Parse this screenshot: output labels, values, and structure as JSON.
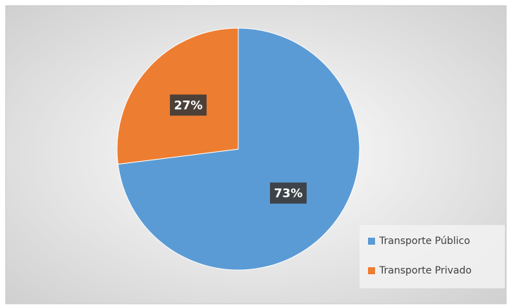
{
  "chart_data": {
    "type": "pie",
    "categories": [
      "Transporte Público",
      "Transporte Privado"
    ],
    "values": [
      73,
      27
    ],
    "value_labels": [
      "73%",
      "27%"
    ],
    "colors": [
      "#5b9bd5",
      "#ed7d31"
    ],
    "legend": "bottom-right"
  }
}
